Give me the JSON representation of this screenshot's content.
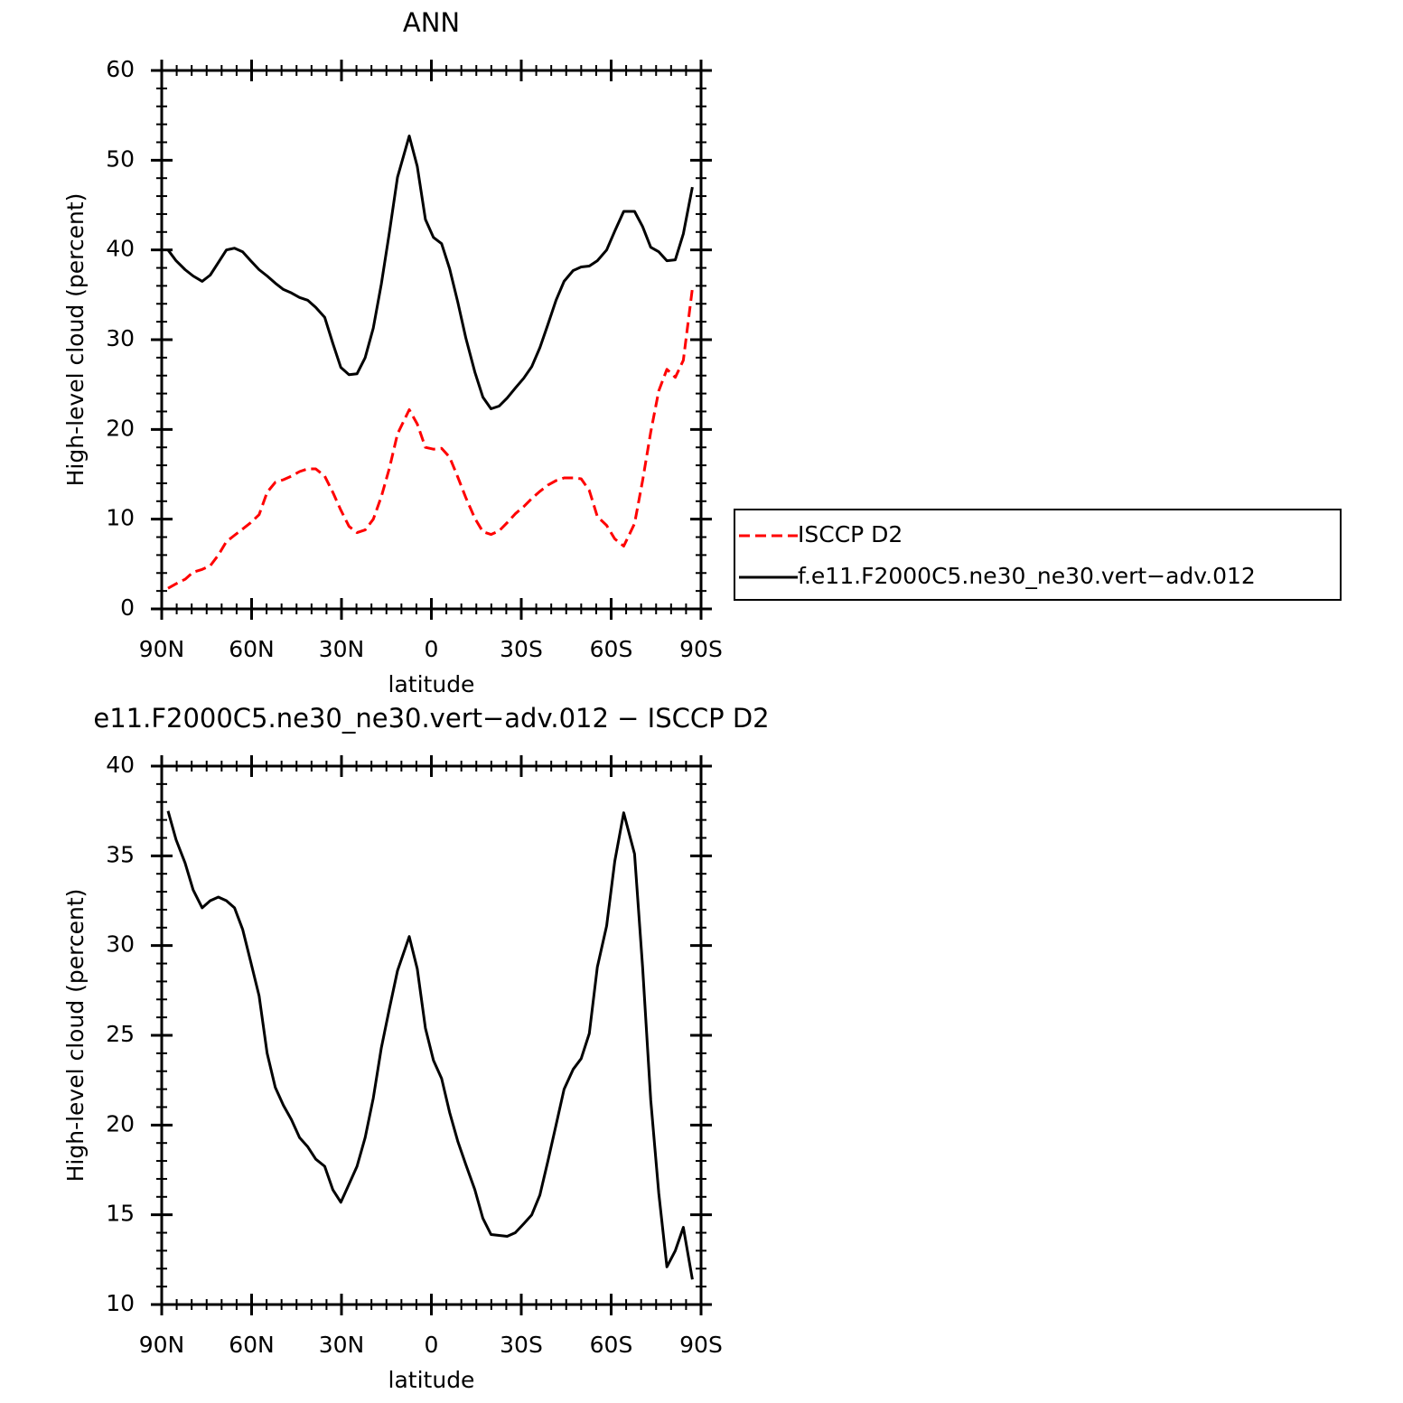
{
  "chart_data": [
    {
      "type": "line",
      "title": "ANN",
      "xlabel": "latitude",
      "ylabel": "High-level cloud (percent)",
      "x": [
        87.9,
        85.2,
        82.2,
        79.5,
        76.5,
        73.8,
        71.1,
        68.4,
        65.7,
        63,
        60.3,
        57.5,
        54.8,
        52.1,
        49.4,
        46.7,
        44,
        41.3,
        38.6,
        35.6,
        32.9,
        30.2,
        27.5,
        24.8,
        22.1,
        19.4,
        16.7,
        14,
        11.3,
        7.4,
        4.7,
        2,
        -0.7,
        -3.4,
        -6.1,
        -8.8,
        -11.5,
        -14.5,
        -17.2,
        -19.9,
        -22.6,
        -25.3,
        -28,
        -30.8,
        -33.5,
        -36.2,
        -38.9,
        -41.6,
        -44.3,
        -47.3,
        -50,
        -52.7,
        -55.4,
        -58.5,
        -61.2,
        -64.2,
        -67.8,
        -70.5,
        -73.2,
        -75.9,
        -78.6,
        -81.4,
        -84.1,
        -87.1
      ],
      "series": [
        {
          "name": "ISCCP D2",
          "color": "#ff0000",
          "dashed": true,
          "values": [
            2.3,
            2.8,
            3.3,
            4.1,
            4.4,
            4.8,
            6,
            7.5,
            8.2,
            8.9,
            9.6,
            10.5,
            13,
            14.1,
            14.4,
            14.8,
            15.3,
            15.6,
            15.6,
            14.8,
            13,
            11,
            9.2,
            8.5,
            8.8,
            10,
            12.5,
            15.7,
            19.5,
            22.2,
            20.6,
            18,
            17.8,
            17.9,
            16.9,
            14.7,
            12.4,
            10.1,
            8.6,
            8.3,
            8.7,
            9.6,
            10.6,
            11.4,
            12.3,
            13.1,
            13.8,
            14.3,
            14.6,
            14.6,
            14.5,
            13.2,
            10.3,
            9.3,
            7.8,
            7,
            9.5,
            14.3,
            19.7,
            24.3,
            26.7,
            25.8,
            27.7,
            35.7
          ]
        },
        {
          "name": "f.e11.F2000C5.ne30_ne30.vert−adv.012",
          "color": "#000000",
          "dashed": false,
          "values": [
            40,
            38.8,
            37.8,
            37.1,
            36.5,
            37.2,
            38.6,
            40,
            40.2,
            39.8,
            38.8,
            37.8,
            37.1,
            36.3,
            35.6,
            35.2,
            34.7,
            34.4,
            33.6,
            32.5,
            29.6,
            26.9,
            26.1,
            26.2,
            28,
            31.3,
            36.2,
            42,
            48.1,
            52.7,
            49.3,
            43.4,
            41.4,
            40.7,
            37.9,
            34.2,
            30.2,
            26.4,
            23.6,
            22.3,
            22.6,
            23.5,
            24.6,
            25.7,
            27,
            29.1,
            31.7,
            34.4,
            36.5,
            37.7,
            38.1,
            38.2,
            38.8,
            40,
            42.1,
            44.3,
            44.3,
            42.6,
            40.3,
            39.8,
            38.8,
            38.9,
            41.8,
            47
          ]
        }
      ],
      "xlim": [
        90,
        -90
      ],
      "xticks": [
        {
          "value": 90,
          "label": "90N"
        },
        {
          "value": 60,
          "label": "60N"
        },
        {
          "value": 30,
          "label": "30N"
        },
        0,
        {
          "value": -30,
          "label": "30S"
        },
        {
          "value": -60,
          "label": "60S"
        },
        {
          "value": -90,
          "label": "90S"
        }
      ],
      "ylim": [
        0,
        60
      ],
      "yticks": [
        0,
        10,
        20,
        30,
        40,
        50,
        60
      ],
      "legend": "right"
    },
    {
      "type": "line",
      "title": "e11.F2000C5.ne30_ne30.vert−adv.012 − ISCCP D2",
      "xlabel": "latitude",
      "ylabel": "High-level cloud (percent)",
      "x": [
        87.9,
        85.2,
        82.2,
        79.5,
        76.5,
        73.8,
        71.1,
        68.4,
        65.7,
        63,
        60.3,
        57.5,
        54.8,
        52.1,
        49.4,
        46.7,
        44,
        41.3,
        38.6,
        35.6,
        32.9,
        30.2,
        27.5,
        24.8,
        22.1,
        19.4,
        16.7,
        14,
        11.3,
        7.4,
        4.7,
        2,
        -0.7,
        -3.4,
        -6.1,
        -8.8,
        -11.5,
        -14.5,
        -17.2,
        -19.9,
        -22.6,
        -25.3,
        -28,
        -30.8,
        -33.5,
        -36.2,
        -38.9,
        -41.6,
        -44.3,
        -47.3,
        -50,
        -52.7,
        -55.4,
        -58.5,
        -61.2,
        -64.2,
        -67.8,
        -70.5,
        -73.2,
        -75.9,
        -78.6,
        -81.4,
        -84.1,
        -87.1
      ],
      "series": [
        {
          "color": "#000000",
          "dashed": false,
          "values": [
            37.5,
            35.9,
            34.6,
            33.1,
            32.1,
            32.5,
            32.7,
            32.5,
            32.1,
            30.9,
            29.1,
            27.2,
            24,
            22.1,
            21.1,
            20.3,
            19.3,
            18.8,
            18.1,
            17.7,
            16.4,
            15.7,
            16.7,
            17.7,
            19.3,
            21.5,
            24.3,
            26.5,
            28.6,
            30.5,
            28.7,
            25.4,
            23.6,
            22.6,
            20.7,
            19.1,
            17.8,
            16.4,
            14.8,
            13.9,
            13.85,
            13.8,
            14,
            14.5,
            15,
            16.1,
            18,
            20,
            22,
            23.1,
            23.7,
            25.1,
            28.8,
            31.1,
            34.7,
            37.4,
            35.1,
            28.8,
            21.4,
            16.2,
            12.1,
            13,
            14.3,
            11.4
          ]
        }
      ],
      "xlim": [
        90,
        -90
      ],
      "xticks": [
        {
          "value": 90,
          "label": "90N"
        },
        {
          "value": 60,
          "label": "60N"
        },
        {
          "value": 30,
          "label": "30N"
        },
        0,
        {
          "value": -30,
          "label": "30S"
        },
        {
          "value": -60,
          "label": "60S"
        },
        {
          "value": -90,
          "label": "90S"
        }
      ],
      "ylim": [
        10,
        40
      ],
      "yticks": [
        10,
        15,
        20,
        25,
        30,
        35,
        40
      ]
    }
  ]
}
